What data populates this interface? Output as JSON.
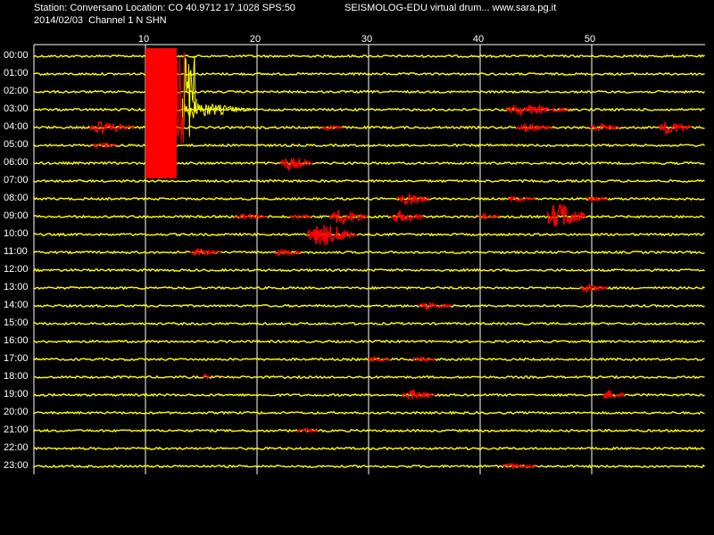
{
  "header": {
    "station_line": "Station: Conversano Location: CO 40.9712 17.1028 SPS:50",
    "date_line": "2014/02/03  Channel 1 N SHN",
    "title": "SEISMOLOG-EDU virtual drum... www.sara.pg.it"
  },
  "minute_ticks": [
    "10",
    "20",
    "30",
    "40",
    "50"
  ],
  "hours": [
    "00:00",
    "01:00",
    "02:00",
    "03:00",
    "04:00",
    "05:00",
    "06:00",
    "07:00",
    "08:00",
    "09:00",
    "10:00",
    "11:00",
    "12:00",
    "13:00",
    "14:00",
    "15:00",
    "16:00",
    "17:00",
    "18:00",
    "19:00",
    "20:00",
    "21:00",
    "22:00",
    "23:00"
  ],
  "colors": {
    "background": "#000000",
    "trace": "#ffff00",
    "event": "#ff0000",
    "grid": "#ffffff",
    "text": "#ffffff"
  },
  "events": [
    {
      "hour": 0,
      "start": 10,
      "end": 13.5,
      "amp": "max"
    },
    {
      "hour": 3,
      "start": 42.3,
      "end": 48,
      "amp": 6
    },
    {
      "hour": 4,
      "start": 5,
      "end": 9,
      "amp": 7
    },
    {
      "hour": 4,
      "start": 25.8,
      "end": 27.8,
      "amp": 3
    },
    {
      "hour": 4,
      "start": 43.2,
      "end": 46.5,
      "amp": 5
    },
    {
      "hour": 4,
      "start": 49.8,
      "end": 52.5,
      "amp": 5
    },
    {
      "hour": 4,
      "start": 56,
      "end": 59,
      "amp": 8
    },
    {
      "hour": 5,
      "start": 5.3,
      "end": 7.5,
      "amp": 4
    },
    {
      "hour": 6,
      "start": 22,
      "end": 25,
      "amp": 8
    },
    {
      "hour": 8,
      "start": 32.5,
      "end": 35.5,
      "amp": 7
    },
    {
      "hour": 8,
      "start": 42.5,
      "end": 45,
      "amp": 3
    },
    {
      "hour": 8,
      "start": 49.5,
      "end": 51.5,
      "amp": 3
    },
    {
      "hour": 9,
      "start": 18,
      "end": 21,
      "amp": 3
    },
    {
      "hour": 9,
      "start": 23,
      "end": 25,
      "amp": 3
    },
    {
      "hour": 9,
      "start": 26.5,
      "end": 30,
      "amp": 9
    },
    {
      "hour": 9,
      "start": 32,
      "end": 35,
      "amp": 7
    },
    {
      "hour": 9,
      "start": 39.8,
      "end": 41.8,
      "amp": 3
    },
    {
      "hour": 9,
      "start": 46,
      "end": 49.5,
      "amp": 17
    },
    {
      "hour": 10,
      "start": 24.5,
      "end": 29,
      "amp": 14
    },
    {
      "hour": 11,
      "start": 14,
      "end": 16.8,
      "amp": 4
    },
    {
      "hour": 11,
      "start": 21.5,
      "end": 24,
      "amp": 4
    },
    {
      "hour": 13,
      "start": 49,
      "end": 51.5,
      "amp": 5
    },
    {
      "hour": 14,
      "start": 34.5,
      "end": 37.5,
      "amp": 4
    },
    {
      "hour": 17,
      "start": 30,
      "end": 32,
      "amp": 3
    },
    {
      "hour": 17,
      "start": 34,
      "end": 36,
      "amp": 3
    },
    {
      "hour": 18,
      "start": 15.2,
      "end": 15.8,
      "amp": 4
    },
    {
      "hour": 19,
      "start": 33,
      "end": 36,
      "amp": 6
    },
    {
      "hour": 19,
      "start": 51,
      "end": 53,
      "amp": 6
    },
    {
      "hour": 21,
      "start": 23.5,
      "end": 25.5,
      "amp": 3
    },
    {
      "hour": 23,
      "start": 42,
      "end": 45,
      "amp": 4
    }
  ]
}
